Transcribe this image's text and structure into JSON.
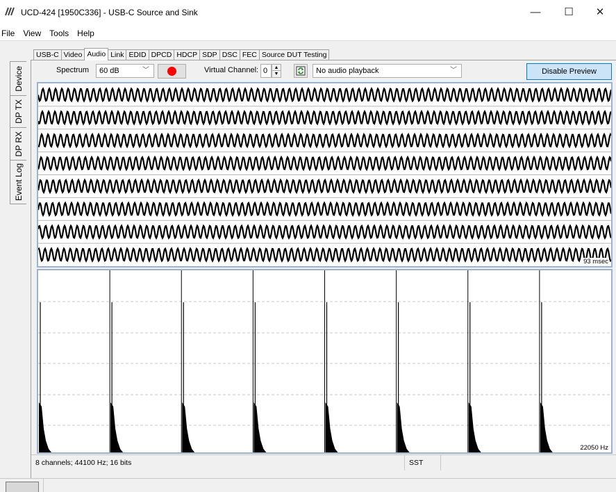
{
  "window": {
    "title": "UCD-424 [1950C336] - USB-C Source and Sink",
    "minimize_glyph": "—",
    "maximize_glyph": "☐",
    "close_glyph": "✕"
  },
  "menu": [
    "File",
    "View",
    "Tools",
    "Help"
  ],
  "side_tabs": [
    "Device",
    "DP TX",
    "DP RX",
    "Event Log"
  ],
  "tabs": [
    "USB-C",
    "Video",
    "Audio",
    "Link",
    "EDID",
    "DPCD",
    "HDCP",
    "SDP",
    "DSC",
    "FEC",
    "Source DUT Testing"
  ],
  "active_tab": "Audio",
  "toolbar": {
    "spectrum_label": "Spectrum",
    "range_value": "60 dB",
    "virtual_channel_label": "Virtual Channel:",
    "virtual_channel_value": "0",
    "playback_value": "No audio playback",
    "disable_preview_label": "Disable Preview"
  },
  "waveform": {
    "time_label": "93 msec",
    "channel_count": 8
  },
  "spectrum": {
    "freq_label": "22050 Hz",
    "peak_count": 8
  },
  "status": {
    "info": "8 channels; 44100 Hz; 16 bits",
    "mode": "SST"
  },
  "colors": {
    "plot_border": "#9ab3d3",
    "record": "#ff0000",
    "button_focus": "#0078d7"
  }
}
